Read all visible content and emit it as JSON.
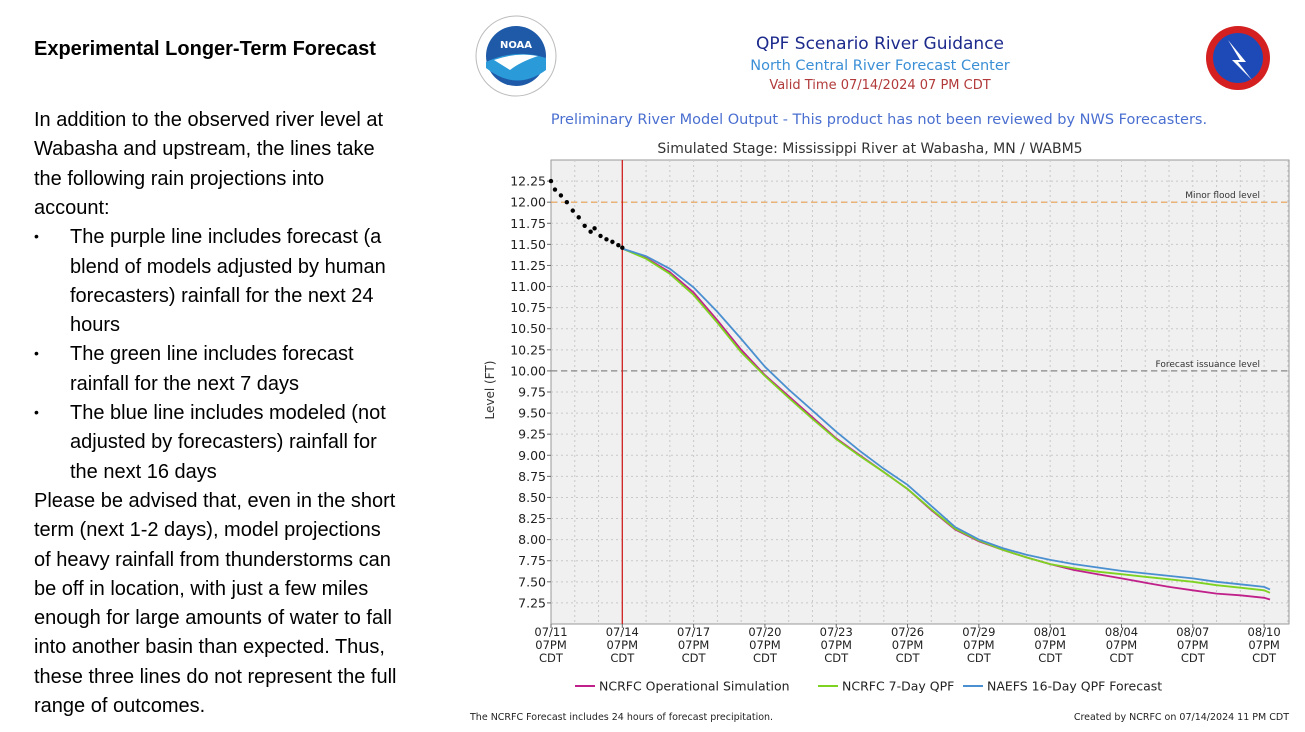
{
  "slide": {
    "title": "Experimental Longer-Term Forecast",
    "intro_lines": [
      "In addition to the observed river level at",
      "Wabasha and upstream, the lines take",
      "the following rain projections into",
      "account:"
    ],
    "bullets": [
      [
        "The purple line includes forecast (a",
        "blend of models adjusted by human",
        "forecasters) rainfall for the next 24",
        "hours"
      ],
      [
        "The green line includes forecast",
        "rainfall for the next 7 days"
      ],
      [
        "The blue line includes modeled (not",
        "adjusted by forecasters) rainfall for",
        "the next 16 days"
      ]
    ],
    "closing_lines": [
      "Please be advised that, even in the short",
      "term (next 1-2 days), model projections",
      "of heavy rainfall from thunderstorms can",
      "be off in location, with just a few miles",
      "enough for large amounts of water to fall",
      "into another basin than expected. Thus,",
      "these three lines do not represent the full",
      "range of outcomes."
    ]
  },
  "header": {
    "title": "QPF Scenario River Guidance",
    "subtitle": "North Central River Forecast Center",
    "valid_time": "Valid Time 07/14/2024 07 PM CDT",
    "notice": "Preliminary River Model Output - This product has not been reviewed by NWS Forecasters.",
    "logos": [
      "NOAA",
      "NATIONAL WEATHER SERVICE"
    ],
    "colors": {
      "title": "#1c2a8c",
      "subtitle": "#3b8fd6",
      "valid_time": "#b23a3a",
      "notice": "#4a6fd0"
    }
  },
  "footer": {
    "left": "The NCRFC Forecast includes 24 hours of forecast precipitation.",
    "right": "Created by NCRFC on 07/14/2024 11 PM CDT"
  },
  "chart_data": {
    "type": "line",
    "title": "Simulated Stage: Mississippi River at Wabasha, MN / WABM5",
    "ylabel": "Level (FT)",
    "xlabel": "",
    "xlim": [
      "2024-07-11 19:00",
      "2024-08-11 20:00"
    ],
    "ylim": [
      7.0,
      12.5
    ],
    "yticks": [
      "12.25",
      "12.00",
      "11.75",
      "11.50",
      "11.25",
      "11.00",
      "10.75",
      "10.50",
      "10.25",
      "10.00",
      "9.75",
      "9.50",
      "9.25",
      "9.00",
      "8.75",
      "8.50",
      "8.25",
      "8.00",
      "7.75",
      "7.50",
      "7.25"
    ],
    "xticks": [
      {
        "date": "2024-07-11 19:00",
        "label": [
          "07/11",
          "07PM",
          "CDT"
        ]
      },
      {
        "date": "2024-07-14 19:00",
        "label": [
          "07/14",
          "07PM",
          "CDT"
        ]
      },
      {
        "date": "2024-07-17 19:00",
        "label": [
          "07/17",
          "07PM",
          "CDT"
        ]
      },
      {
        "date": "2024-07-20 19:00",
        "label": [
          "07/20",
          "07PM",
          "CDT"
        ]
      },
      {
        "date": "2024-07-23 19:00",
        "label": [
          "07/23",
          "07PM",
          "CDT"
        ]
      },
      {
        "date": "2024-07-26 19:00",
        "label": [
          "07/26",
          "07PM",
          "CDT"
        ]
      },
      {
        "date": "2024-07-29 19:00",
        "label": [
          "07/29",
          "07PM",
          "CDT"
        ]
      },
      {
        "date": "2024-08-01 19:00",
        "label": [
          "08/01",
          "07PM",
          "CDT"
        ]
      },
      {
        "date": "2024-08-04 19:00",
        "label": [
          "08/04",
          "07PM",
          "CDT"
        ]
      },
      {
        "date": "2024-08-07 19:00",
        "label": [
          "08/07",
          "07PM",
          "CDT"
        ]
      },
      {
        "date": "2024-08-10 19:00",
        "label": [
          "08/10",
          "07PM",
          "CDT"
        ]
      }
    ],
    "grid": true,
    "legend_position": "bottom",
    "reference_lines": [
      {
        "label": "Minor flood level",
        "value": 12.0,
        "color": "#e8a050"
      },
      {
        "label": "Forecast issuance level",
        "value": 10.0,
        "color": "#888888"
      }
    ],
    "issuance_time": "2024-07-14 19:00",
    "issuance_color": "#d02020",
    "observed": {
      "color": "#000000",
      "x": [
        "2024-07-11 19:00",
        "2024-07-11 23:00",
        "2024-07-12 05:00",
        "2024-07-12 11:00",
        "2024-07-12 17:00",
        "2024-07-12 23:00",
        "2024-07-13 05:00",
        "2024-07-13 11:00",
        "2024-07-13 15:00",
        "2024-07-13 21:00",
        "2024-07-14 03:00",
        "2024-07-14 09:00",
        "2024-07-14 15:00",
        "2024-07-14 19:00"
      ],
      "y": [
        12.25,
        12.15,
        12.08,
        12.0,
        11.9,
        11.82,
        11.72,
        11.65,
        11.69,
        11.6,
        11.56,
        11.53,
        11.49,
        11.46
      ]
    },
    "x": [
      "2024-07-14 19:00",
      "2024-07-15 19:00",
      "2024-07-16 19:00",
      "2024-07-17 19:00",
      "2024-07-18 19:00",
      "2024-07-19 19:00",
      "2024-07-20 19:00",
      "2024-07-21 19:00",
      "2024-07-22 19:00",
      "2024-07-23 19:00",
      "2024-07-24 19:00",
      "2024-07-25 19:00",
      "2024-07-26 19:00",
      "2024-07-27 19:00",
      "2024-07-28 19:00",
      "2024-07-29 19:00",
      "2024-07-30 19:00",
      "2024-07-31 19:00",
      "2024-08-01 19:00",
      "2024-08-02 19:00",
      "2024-08-03 19:00",
      "2024-08-04 19:00",
      "2024-08-05 19:00",
      "2024-08-06 19:00",
      "2024-08-07 19:00",
      "2024-08-08 19:00",
      "2024-08-09 19:00",
      "2024-08-10 19:00",
      "2024-08-11 01:00"
    ],
    "series": [
      {
        "name": "NCRFC Operational Simulation",
        "color": "#c0208a",
        "values": [
          11.45,
          11.34,
          11.17,
          10.93,
          10.6,
          10.25,
          9.95,
          9.7,
          9.45,
          9.2,
          9.0,
          8.8,
          8.6,
          8.35,
          8.12,
          7.98,
          7.88,
          7.79,
          7.71,
          7.64,
          7.59,
          7.54,
          7.49,
          7.44,
          7.4,
          7.36,
          7.34,
          7.31,
          7.29
        ]
      },
      {
        "name": "NCRFC 7-Day QPF",
        "color": "#7ed321",
        "values": [
          11.45,
          11.33,
          11.15,
          10.9,
          10.57,
          10.22,
          9.94,
          9.68,
          9.43,
          9.19,
          8.99,
          8.8,
          8.6,
          8.36,
          8.13,
          7.99,
          7.88,
          7.79,
          7.71,
          7.66,
          7.62,
          7.59,
          7.56,
          7.53,
          7.5,
          7.46,
          7.43,
          7.4,
          7.37
        ]
      },
      {
        "name": "NAEFS 16-Day QPF Forecast",
        "color": "#4a8fd0",
        "values": [
          11.45,
          11.36,
          11.21,
          10.99,
          10.7,
          10.38,
          10.05,
          9.78,
          9.53,
          9.28,
          9.05,
          8.84,
          8.65,
          8.4,
          8.15,
          8.0,
          7.9,
          7.82,
          7.76,
          7.71,
          7.67,
          7.63,
          7.6,
          7.57,
          7.54,
          7.5,
          7.47,
          7.44,
          7.41
        ]
      }
    ]
  }
}
